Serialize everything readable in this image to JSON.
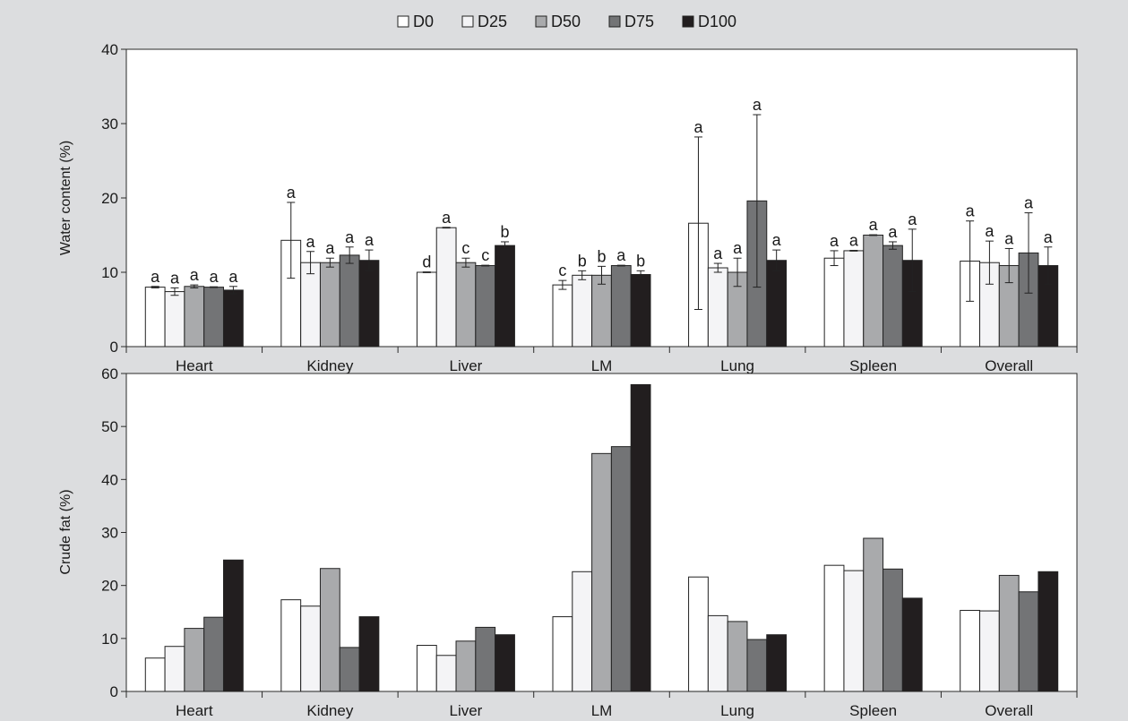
{
  "legend": {
    "position": "top-center",
    "items": [
      {
        "name": "D0",
        "color": "#ffffff"
      },
      {
        "name": "D25",
        "color": "#f4f4f6"
      },
      {
        "name": "D50",
        "color": "#a9aaac"
      },
      {
        "name": "D75",
        "color": "#737476"
      },
      {
        "name": "D100",
        "color": "#221e1f"
      }
    ]
  },
  "chart_data": [
    {
      "type": "bar",
      "title": "",
      "xlabel": "",
      "ylabel": "Water content (%)",
      "ylim": [
        0,
        40
      ],
      "yticks": [
        "0",
        "10",
        "20",
        "30",
        "40"
      ],
      "grid": false,
      "categories": [
        "Heart",
        "Kidney",
        "Liver",
        "LM",
        "Lung",
        "Spleen",
        "Overall"
      ],
      "series": [
        {
          "name": "D0",
          "values": [
            8.0,
            14.3,
            10.0,
            8.3,
            16.6,
            11.9,
            11.5
          ],
          "errors": [
            0.1,
            5.1,
            0.05,
            0.6,
            11.6,
            1.0,
            5.4
          ],
          "letters": [
            "a",
            "a",
            "d",
            "c",
            "a",
            "a",
            "a"
          ]
        },
        {
          "name": "D25",
          "values": [
            7.4,
            11.3,
            16.0,
            9.6,
            10.6,
            12.9,
            11.3
          ],
          "errors": [
            0.5,
            1.5,
            0.05,
            0.6,
            0.6,
            0.05,
            2.9
          ],
          "letters": [
            "a",
            "a",
            "a",
            "b",
            "a",
            "a",
            "a"
          ]
        },
        {
          "name": "D50",
          "values": [
            8.1,
            11.3,
            11.3,
            9.6,
            10.0,
            15.0,
            10.9
          ],
          "errors": [
            0.2,
            0.6,
            0.6,
            1.2,
            1.9,
            0.05,
            2.3
          ],
          "letters": [
            "a",
            "a",
            "c",
            "b",
            "a",
            "a",
            "a"
          ]
        },
        {
          "name": "D75",
          "values": [
            8.0,
            12.3,
            10.9,
            10.9,
            19.6,
            13.6,
            12.6
          ],
          "errors": [
            0.05,
            1.1,
            0.05,
            0.05,
            11.6,
            0.5,
            5.4
          ],
          "letters": [
            "a",
            "a",
            "c",
            "a",
            "a",
            "a",
            "a"
          ]
        },
        {
          "name": "D100",
          "values": [
            7.6,
            11.6,
            13.6,
            9.7,
            11.6,
            11.6,
            10.9
          ],
          "errors": [
            0.5,
            1.4,
            0.5,
            0.5,
            1.4,
            4.2,
            2.5
          ],
          "letters": [
            "a",
            "a",
            "b",
            "b",
            "a",
            "a",
            "a"
          ]
        }
      ]
    },
    {
      "type": "bar",
      "title": "",
      "xlabel": "",
      "ylabel": "Crude fat (%)",
      "ylim": [
        0,
        60
      ],
      "yticks": [
        "0",
        "10",
        "20",
        "30",
        "40",
        "50",
        "60"
      ],
      "grid": false,
      "categories": [
        "Heart",
        "Kidney",
        "Liver",
        "LM",
        "Lung",
        "Spleen",
        "Overall"
      ],
      "series": [
        {
          "name": "D0",
          "values": [
            6.3,
            17.3,
            8.7,
            14.1,
            21.6,
            23.8,
            15.3
          ]
        },
        {
          "name": "D25",
          "values": [
            8.5,
            16.1,
            6.8,
            22.6,
            14.3,
            22.8,
            15.2
          ]
        },
        {
          "name": "D50",
          "values": [
            11.9,
            23.2,
            9.5,
            44.9,
            13.2,
            28.9,
            21.9
          ]
        },
        {
          "name": "D75",
          "values": [
            14.0,
            8.3,
            12.1,
            46.2,
            9.8,
            23.1,
            18.8
          ]
        },
        {
          "name": "D100",
          "values": [
            24.8,
            14.1,
            10.7,
            57.9,
            10.7,
            17.6,
            22.6
          ]
        }
      ]
    }
  ]
}
